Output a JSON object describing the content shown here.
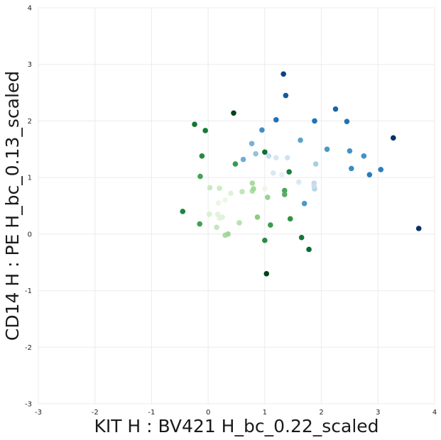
{
  "chart_data": {
    "type": "scatter",
    "title": "",
    "xlabel": "KIT H : BV421 H_bc_0.22_scaled",
    "ylabel": "CD14 H : PE H_bc_0.13_scaled",
    "xlim": [
      -3,
      4
    ],
    "ylim": [
      -3,
      4
    ],
    "xticks": [
      "-3",
      "-2",
      "-1",
      "0",
      "1",
      "2",
      "3",
      "4"
    ],
    "yticks": [
      "-3",
      "-2",
      "-1",
      "0",
      "1",
      "2",
      "3",
      "4"
    ],
    "grid": true,
    "legend": "none",
    "colormap": "diverging green-white-blue",
    "colors": {
      "grid": "#ebebeb",
      "text": "#1a1a1a"
    },
    "points": [
      {
        "x": 1.33,
        "y": 2.83,
        "color": "#0b4389"
      },
      {
        "x": 1.37,
        "y": 2.45,
        "color": "#125aa2"
      },
      {
        "x": 3.27,
        "y": 1.7,
        "color": "#08306b"
      },
      {
        "x": 3.72,
        "y": 0.1,
        "color": "#08306b"
      },
      {
        "x": 2.25,
        "y": 2.21,
        "color": "#1a64ab"
      },
      {
        "x": 2.45,
        "y": 1.99,
        "color": "#2171b5"
      },
      {
        "x": 1.2,
        "y": 2.02,
        "color": "#2171b5"
      },
      {
        "x": 1.88,
        "y": 2.0,
        "color": "#2373b6"
      },
      {
        "x": 0.95,
        "y": 1.84,
        "color": "#3f8fc5"
      },
      {
        "x": 1.63,
        "y": 1.66,
        "color": "#5da1d1"
      },
      {
        "x": 2.1,
        "y": 1.5,
        "color": "#4a98c9"
      },
      {
        "x": 2.5,
        "y": 1.47,
        "color": "#4292c6"
      },
      {
        "x": 2.75,
        "y": 1.38,
        "color": "#4292c6"
      },
      {
        "x": 3.05,
        "y": 1.14,
        "color": "#2e7ebc"
      },
      {
        "x": 2.53,
        "y": 1.16,
        "color": "#3b8bc2"
      },
      {
        "x": 2.85,
        "y": 1.05,
        "color": "#2c7bb9"
      },
      {
        "x": 0.77,
        "y": 1.6,
        "color": "#75b3d8"
      },
      {
        "x": 0.84,
        "y": 1.42,
        "color": "#8fc2de"
      },
      {
        "x": 0.62,
        "y": 1.32,
        "color": "#6aaed6"
      },
      {
        "x": 1.07,
        "y": 1.38,
        "color": "#c6dbef"
      },
      {
        "x": 1.2,
        "y": 1.35,
        "color": "#d6e6f4"
      },
      {
        "x": 1.4,
        "y": 1.35,
        "color": "#d0e2f2"
      },
      {
        "x": 1.9,
        "y": 1.24,
        "color": "#a6cee4"
      },
      {
        "x": 1.15,
        "y": 1.08,
        "color": "#d9e8f5"
      },
      {
        "x": 1.3,
        "y": 1.05,
        "color": "#e4eff8"
      },
      {
        "x": 1.6,
        "y": 0.92,
        "color": "#dbe9f6"
      },
      {
        "x": 1.87,
        "y": 0.9,
        "color": "#c2d9ee"
      },
      {
        "x": 1.88,
        "y": 0.8,
        "color": "#b5d4e9"
      },
      {
        "x": 1.87,
        "y": 0.85,
        "color": "#c9ddf0"
      },
      {
        "x": 1.7,
        "y": 0.54,
        "color": "#4a98c9"
      },
      {
        "x": 1.0,
        "y": 0.8,
        "color": "#eef6ec"
      },
      {
        "x": 0.18,
        "y": 0.55,
        "color": "#eaf6e6"
      },
      {
        "x": 0.3,
        "y": 0.6,
        "color": "#edf8e9"
      },
      {
        "x": 0.4,
        "y": 0.72,
        "color": "#dff2d9"
      },
      {
        "x": 0.2,
        "y": 0.28,
        "color": "#e5f5e0"
      },
      {
        "x": 0.17,
        "y": 0.35,
        "color": "#e0f3db"
      },
      {
        "x": 0.02,
        "y": 0.35,
        "color": "#d9f0d3"
      },
      {
        "x": 0.25,
        "y": 0.3,
        "color": "#dff3da"
      },
      {
        "x": 0.03,
        "y": 0.82,
        "color": "#c7e9c0"
      },
      {
        "x": 0.2,
        "y": 0.81,
        "color": "#cdebc6"
      },
      {
        "x": 0.6,
        "y": 0.75,
        "color": "#bfe6b8"
      },
      {
        "x": 0.78,
        "y": 0.76,
        "color": "#b2e0ab"
      },
      {
        "x": 0.78,
        "y": 0.9,
        "color": "#a8db9f"
      },
      {
        "x": 0.8,
        "y": 0.8,
        "color": "#a1d99b"
      },
      {
        "x": 0.15,
        "y": 0.12,
        "color": "#c3e7bb"
      },
      {
        "x": 0.3,
        "y": -0.02,
        "color": "#a8dca1"
      },
      {
        "x": 0.35,
        "y": 0.0,
        "color": "#9fd696"
      },
      {
        "x": 0.55,
        "y": 0.2,
        "color": "#b7e2b0"
      },
      {
        "x": 0.87,
        "y": 0.3,
        "color": "#8ccd84"
      },
      {
        "x": 1.05,
        "y": 0.65,
        "color": "#98d390"
      },
      {
        "x": 1.35,
        "y": 0.77,
        "color": "#4aa75c"
      },
      {
        "x": 1.35,
        "y": 0.7,
        "color": "#56b062"
      },
      {
        "x": 1.43,
        "y": 1.1,
        "color": "#1a7d3e"
      },
      {
        "x": 0.48,
        "y": 1.24,
        "color": "#359a4f"
      },
      {
        "x": 1.0,
        "y": 1.45,
        "color": "#0b7233"
      },
      {
        "x": -0.14,
        "y": 1.02,
        "color": "#45a155"
      },
      {
        "x": -0.11,
        "y": 1.38,
        "color": "#2a8944"
      },
      {
        "x": -0.05,
        "y": 1.83,
        "color": "#157a3a"
      },
      {
        "x": -0.24,
        "y": 1.94,
        "color": "#107536"
      },
      {
        "x": 0.45,
        "y": 2.14,
        "color": "#00441b"
      },
      {
        "x": -0.45,
        "y": 0.4,
        "color": "#1f8340"
      },
      {
        "x": -0.15,
        "y": 0.18,
        "color": "#40a053"
      },
      {
        "x": 1.1,
        "y": 0.16,
        "color": "#3c9c52"
      },
      {
        "x": 1.45,
        "y": 0.27,
        "color": "#2f9149"
      },
      {
        "x": 1.0,
        "y": -0.11,
        "color": "#2a8b45"
      },
      {
        "x": 1.65,
        "y": -0.06,
        "color": "#127737"
      },
      {
        "x": 1.78,
        "y": -0.27,
        "color": "#0b6a30"
      },
      {
        "x": 1.03,
        "y": -0.7,
        "color": "#00441b"
      }
    ]
  }
}
